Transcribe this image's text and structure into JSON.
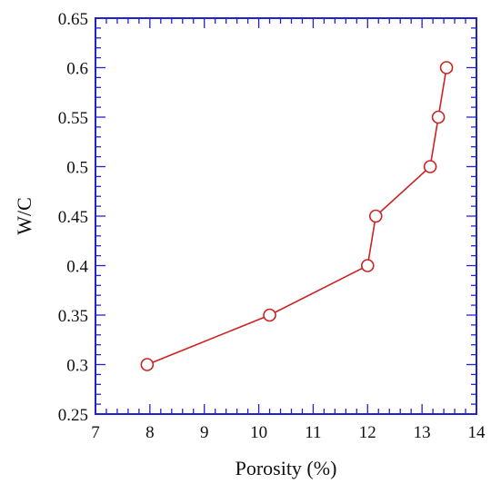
{
  "chart_data": {
    "type": "line",
    "title": "",
    "xlabel": "Porosity (%)",
    "ylabel": "W/C",
    "xlim": [
      7,
      14
    ],
    "ylim": [
      0.25,
      0.65
    ],
    "x_ticks": [
      7,
      8,
      9,
      10,
      11,
      12,
      13,
      14
    ],
    "y_ticks": [
      0.25,
      0.3,
      0.35,
      0.4,
      0.45,
      0.5,
      0.55,
      0.6,
      0.65
    ],
    "x_tick_labels": [
      "7",
      "8",
      "9",
      "10",
      "11",
      "12",
      "13",
      "14"
    ],
    "y_tick_labels": [
      "0.25",
      "0.3",
      "0.35",
      "0.4",
      "0.45",
      "0.5",
      "0.55",
      "0.6",
      "0.65"
    ],
    "grid": false,
    "legend": "none",
    "marker": "open-circle",
    "frame_color": "#2222cc",
    "series": [
      {
        "color": "#cc2222",
        "x": [
          7.95,
          10.2,
          12.0,
          12.15,
          13.15,
          13.3,
          13.45
        ],
        "y": [
          0.3,
          0.35,
          0.4,
          0.45,
          0.5,
          0.55,
          0.6
        ]
      }
    ]
  }
}
